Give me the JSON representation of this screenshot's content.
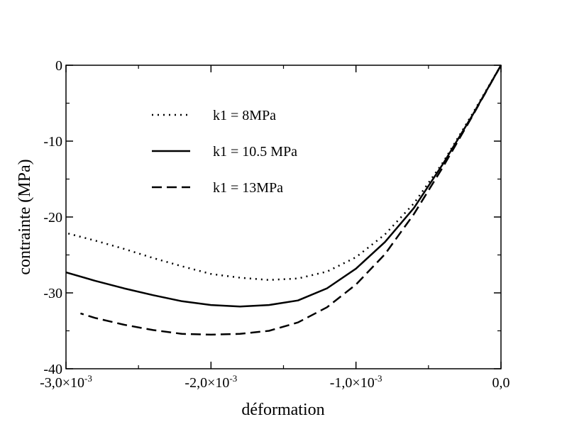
{
  "chart_data": {
    "type": "line",
    "xlabel": "déformation",
    "ylabel": "contrainte (MPa)",
    "xlim": [
      -0.003,
      0.0
    ],
    "ylim": [
      -40,
      0
    ],
    "grid": false,
    "legend_position": "top-left",
    "x_ticks": [
      {
        "value": -0.003,
        "base": "-3,0×10",
        "exp": "-3"
      },
      {
        "value": -0.002,
        "base": "-2,0×10",
        "exp": "-3"
      },
      {
        "value": -0.001,
        "base": "-1,0×10",
        "exp": "-3"
      },
      {
        "value": 0.0,
        "base": "0,0",
        "exp": ""
      }
    ],
    "y_ticks": [
      {
        "value": 0,
        "label": "0"
      },
      {
        "value": -10,
        "label": "-10"
      },
      {
        "value": -20,
        "label": "-20"
      },
      {
        "value": -30,
        "label": "-30"
      },
      {
        "value": -40,
        "label": "-40"
      }
    ],
    "series": [
      {
        "name": "k1 = 8MPa",
        "style": "dotted",
        "x": [
          0.0,
          -0.0002,
          -0.0004,
          -0.0006,
          -0.0008,
          -0.001,
          -0.0012,
          -0.0014,
          -0.0016,
          -0.0018,
          -0.002,
          -0.0022,
          -0.0024,
          -0.0026,
          -0.0028,
          -0.003
        ],
        "y": [
          0,
          -6.5,
          -12.8,
          -18.2,
          -22.3,
          -25.3,
          -27.2,
          -28.1,
          -28.3,
          -28.0,
          -27.5,
          -26.5,
          -25.4,
          -24.2,
          -23.1,
          -22.1
        ]
      },
      {
        "name": "k1 = 10.5 MPa",
        "style": "solid",
        "x": [
          0.0,
          -0.0002,
          -0.0004,
          -0.0006,
          -0.0008,
          -0.001,
          -0.0012,
          -0.0014,
          -0.0016,
          -0.0018,
          -0.002,
          -0.0022,
          -0.0024,
          -0.0026,
          -0.0028,
          -0.003
        ],
        "y": [
          0,
          -6.7,
          -13.0,
          -18.8,
          -23.3,
          -26.8,
          -29.4,
          -31.0,
          -31.6,
          -31.8,
          -31.6,
          -31.1,
          -30.3,
          -29.4,
          -28.4,
          -27.3
        ]
      },
      {
        "name": "k1 = 13MPa",
        "style": "dashed",
        "x": [
          0.0,
          -0.0002,
          -0.0004,
          -0.0006,
          -0.0008,
          -0.001,
          -0.0012,
          -0.0014,
          -0.0016,
          -0.0018,
          -0.002,
          -0.0022,
          -0.0024,
          -0.0026,
          -0.0028,
          -0.0029
        ],
        "y": [
          0,
          -6.8,
          -13.4,
          -19.6,
          -24.9,
          -28.9,
          -31.9,
          -33.9,
          -35.0,
          -35.4,
          -35.5,
          -35.4,
          -34.9,
          -34.2,
          -33.3,
          -32.7
        ]
      }
    ]
  }
}
